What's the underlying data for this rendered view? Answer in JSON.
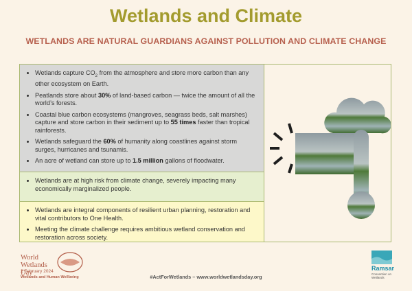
{
  "header": {
    "title": "Wetlands and Climate",
    "subtitle": "WETLANDS ARE NATURAL GUARDIANS AGAINST POLLUTION AND CLIMATE CHANGE"
  },
  "sections": [
    {
      "bullets": [
        [
          {
            "text": "Wetlands capture CO"
          },
          {
            "text": "2",
            "sub": true
          },
          {
            "text": " from the atmosphere and store more carbon than any other ecosystem on Earth."
          }
        ],
        [
          {
            "text": "Peatlands store about "
          },
          {
            "text": "30%",
            "strong": true
          },
          {
            "text": " of land-based carbon — twice the amount of all the world’s forests."
          }
        ],
        [
          {
            "text": "Coastal blue carbon ecosystems (mangroves, seagrass beds, salt marshes) capture and store carbon in their sediment up to "
          },
          {
            "text": "55 times",
            "strong": true
          },
          {
            "text": " faster than tropical rainforests."
          }
        ],
        [
          {
            "text": "Wetlands safeguard the "
          },
          {
            "text": "60%",
            "strong": true
          },
          {
            "text": " of humanity along coastlines against storm surges, hurricanes and tsunamis."
          }
        ],
        [
          {
            "text": "An acre of wetland can store up to "
          },
          {
            "text": "1.5 million",
            "strong": true
          },
          {
            "text": " gallons of floodwater."
          }
        ]
      ]
    },
    {
      "bullets": [
        [
          {
            "text": "Wetlands are at high risk from climate change, severely impacting many economically marginalized people."
          }
        ]
      ]
    },
    {
      "bullets": [
        [
          {
            "text": "Wetlands are integral components of resilient urban planning, restoration and vital contributors to One Health."
          }
        ],
        [
          {
            "text": "Meeting the climate challenge requires ambitious wetland conservation and restoration across society."
          }
        ]
      ]
    }
  ],
  "footer": {
    "event": "World Wetlands Day",
    "date": "2 February 2024",
    "theme": "Wetlands and Human Wellbeing",
    "link": "#ActForWetlands – www.worldwetlandsday.org",
    "partner": "Ramsar",
    "partner_sub": "Convention on Wetlands"
  }
}
